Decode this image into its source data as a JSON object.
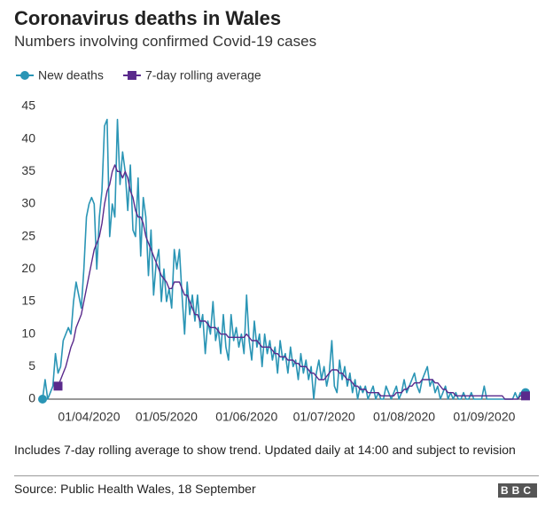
{
  "chart_data": {
    "type": "line",
    "title": "Coronavirus deaths in Wales",
    "subtitle": "Numbers involving confirmed Covid-19 cases",
    "note": "Includes 7-day rolling average to show trend. Updated daily at 14:00 and subject to revision",
    "source": "Source: Public Health Wales, 18 September",
    "brand": "BBC",
    "legend": "top-left",
    "grid": false,
    "x": [
      "2020-03-14",
      "2020-03-15",
      "2020-03-16",
      "2020-03-17",
      "2020-03-18",
      "2020-03-19",
      "2020-03-20",
      "2020-03-21",
      "2020-03-22",
      "2020-03-23",
      "2020-03-24",
      "2020-03-25",
      "2020-03-26",
      "2020-03-27",
      "2020-03-28",
      "2020-03-29",
      "2020-03-30",
      "2020-03-31",
      "2020-04-01",
      "2020-04-02",
      "2020-04-03",
      "2020-04-04",
      "2020-04-05",
      "2020-04-06",
      "2020-04-07",
      "2020-04-08",
      "2020-04-09",
      "2020-04-10",
      "2020-04-11",
      "2020-04-12",
      "2020-04-13",
      "2020-04-14",
      "2020-04-15",
      "2020-04-16",
      "2020-04-17",
      "2020-04-18",
      "2020-04-19",
      "2020-04-20",
      "2020-04-21",
      "2020-04-22",
      "2020-04-23",
      "2020-04-24",
      "2020-04-25",
      "2020-04-26",
      "2020-04-27",
      "2020-04-28",
      "2020-04-29",
      "2020-04-30",
      "2020-05-01",
      "2020-05-02",
      "2020-05-03",
      "2020-05-04",
      "2020-05-05",
      "2020-05-06",
      "2020-05-07",
      "2020-05-08",
      "2020-05-09",
      "2020-05-10",
      "2020-05-11",
      "2020-05-12",
      "2020-05-13",
      "2020-05-14",
      "2020-05-15",
      "2020-05-16",
      "2020-05-17",
      "2020-05-18",
      "2020-05-19",
      "2020-05-20",
      "2020-05-21",
      "2020-05-22",
      "2020-05-23",
      "2020-05-24",
      "2020-05-25",
      "2020-05-26",
      "2020-05-27",
      "2020-05-28",
      "2020-05-29",
      "2020-05-30",
      "2020-05-31",
      "2020-06-01",
      "2020-06-02",
      "2020-06-03",
      "2020-06-04",
      "2020-06-05",
      "2020-06-06",
      "2020-06-07",
      "2020-06-08",
      "2020-06-09",
      "2020-06-10",
      "2020-06-11",
      "2020-06-12",
      "2020-06-13",
      "2020-06-14",
      "2020-06-15",
      "2020-06-16",
      "2020-06-17",
      "2020-06-18",
      "2020-06-19",
      "2020-06-20",
      "2020-06-21",
      "2020-06-22",
      "2020-06-23",
      "2020-06-24",
      "2020-06-25",
      "2020-06-26",
      "2020-06-27",
      "2020-06-28",
      "2020-06-29",
      "2020-06-30",
      "2020-07-01",
      "2020-07-02",
      "2020-07-03",
      "2020-07-04",
      "2020-07-05",
      "2020-07-06",
      "2020-07-07",
      "2020-07-08",
      "2020-07-09",
      "2020-07-10",
      "2020-07-11",
      "2020-07-12",
      "2020-07-13",
      "2020-07-14",
      "2020-07-15",
      "2020-07-16",
      "2020-07-17",
      "2020-07-18",
      "2020-07-19",
      "2020-07-20",
      "2020-07-21",
      "2020-07-22",
      "2020-07-23",
      "2020-07-24",
      "2020-07-25",
      "2020-07-26",
      "2020-07-27",
      "2020-07-28",
      "2020-07-29",
      "2020-07-30",
      "2020-07-31",
      "2020-08-01",
      "2020-08-02",
      "2020-08-03",
      "2020-08-04",
      "2020-08-05",
      "2020-08-06",
      "2020-08-07",
      "2020-08-08",
      "2020-08-09",
      "2020-08-10",
      "2020-08-11",
      "2020-08-12",
      "2020-08-13",
      "2020-08-14",
      "2020-08-15",
      "2020-08-16",
      "2020-08-17",
      "2020-08-18",
      "2020-08-19",
      "2020-08-20",
      "2020-08-21",
      "2020-08-22",
      "2020-08-23",
      "2020-08-24",
      "2020-08-25",
      "2020-08-26",
      "2020-08-27",
      "2020-08-28",
      "2020-08-29",
      "2020-08-30",
      "2020-08-31",
      "2020-09-01",
      "2020-09-02",
      "2020-09-03",
      "2020-09-04",
      "2020-09-05",
      "2020-09-06",
      "2020-09-07",
      "2020-09-08",
      "2020-09-09",
      "2020-09-10",
      "2020-09-11",
      "2020-09-12",
      "2020-09-13",
      "2020-09-14",
      "2020-09-15",
      "2020-09-16",
      "2020-09-17"
    ],
    "series": [
      {
        "name": "New deaths",
        "color": "#2a95b5",
        "marker": "circle",
        "values": [
          0,
          3,
          0,
          1,
          2,
          7,
          4,
          5,
          9,
          10,
          11,
          10,
          15,
          18,
          16,
          14,
          20,
          28,
          30,
          31,
          30,
          20,
          28,
          32,
          42,
          43,
          25,
          30,
          28,
          43,
          33,
          38,
          35,
          29,
          36,
          26,
          25,
          34,
          22,
          31,
          28,
          19,
          26,
          16,
          21,
          23,
          15,
          20,
          15,
          17,
          14,
          23,
          20,
          23,
          16,
          10,
          18,
          13,
          16,
          12,
          16,
          11,
          13,
          7,
          12,
          10,
          15,
          9,
          11,
          7,
          13,
          8,
          6,
          13,
          9,
          11,
          8,
          10,
          7,
          16,
          9,
          6,
          12,
          8,
          10,
          5,
          10,
          7,
          9,
          6,
          8,
          4,
          9,
          6,
          7,
          4,
          8,
          5,
          6,
          3,
          7,
          4,
          6,
          3,
          5,
          0,
          4,
          6,
          3,
          5,
          2,
          4,
          9,
          2,
          1,
          6,
          3,
          5,
          2,
          4,
          1,
          3,
          0,
          2,
          1,
          2,
          0,
          1,
          2,
          0,
          1,
          0,
          0,
          2,
          1,
          0,
          1,
          2,
          0,
          1,
          3,
          1,
          2,
          3,
          4,
          2,
          1,
          3,
          4,
          5,
          2,
          3,
          1,
          2,
          0,
          1,
          2,
          0,
          1,
          0,
          1,
          0,
          0,
          1,
          0,
          0,
          1,
          0,
          0,
          0,
          0,
          2,
          0,
          0,
          0,
          0,
          0,
          0,
          0,
          0,
          0,
          0,
          0,
          1,
          0,
          1,
          0,
          1
        ]
      },
      {
        "name": "7-day rolling average",
        "color": "#5a2a8c",
        "marker": "square",
        "values": [
          null,
          null,
          null,
          null,
          null,
          null,
          2,
          3,
          4,
          5,
          6.5,
          8,
          9,
          11,
          12,
          13,
          15,
          17,
          19,
          21,
          23,
          24,
          25,
          27,
          30,
          32,
          33,
          35,
          36,
          35,
          35,
          34,
          35,
          34,
          32,
          31,
          29,
          28,
          28,
          27,
          25,
          24,
          23,
          22,
          21,
          20,
          19,
          18.5,
          18,
          17,
          17,
          18,
          18,
          18,
          17,
          16,
          16,
          15,
          14,
          13,
          13,
          12,
          12,
          12,
          11.5,
          11,
          11,
          11,
          10.5,
          10,
          10,
          10,
          9.5,
          9.5,
          9.5,
          9.5,
          9.5,
          9.5,
          9.5,
          10,
          9.5,
          9,
          9,
          9,
          8.5,
          8,
          8,
          8,
          8,
          7.5,
          7,
          7,
          6.5,
          6.5,
          6.5,
          6,
          6,
          6,
          5.5,
          5.5,
          5,
          5,
          5,
          4.5,
          4,
          4,
          3.5,
          3,
          3,
          3,
          3.5,
          4,
          4.5,
          4.5,
          4.5,
          4,
          4,
          3.5,
          3,
          3,
          2.5,
          2,
          2,
          1.5,
          1.5,
          1.5,
          1,
          1,
          1,
          1,
          1,
          0.5,
          0.5,
          0.5,
          0.5,
          0.5,
          0.5,
          1,
          1,
          1,
          1.5,
          1.5,
          2,
          2,
          2.5,
          2.5,
          2.5,
          3,
          3,
          3,
          3,
          3,
          2.5,
          2.5,
          2,
          1.5,
          1.5,
          1,
          1,
          1,
          0.5,
          0.5,
          0.5,
          0.5,
          0.5,
          0.5,
          0.5,
          0.5,
          0.5,
          0.5,
          0.5,
          0.5,
          0.5,
          0.5,
          0.5,
          0.5,
          0.5,
          0.5,
          0.5,
          0,
          0,
          0,
          0,
          0,
          0,
          0.5,
          0.5,
          0.5
        ]
      }
    ],
    "xlim": [
      "2020-03-14",
      "2020-09-17"
    ],
    "xticks": [
      {
        "value": "2020-04-01",
        "label": "01/04/2020"
      },
      {
        "value": "2020-05-01",
        "label": "01/05/2020"
      },
      {
        "value": "2020-06-01",
        "label": "01/06/2020"
      },
      {
        "value": "2020-07-01",
        "label": "01/07/2020"
      },
      {
        "value": "2020-08-01",
        "label": "01/08/2020"
      },
      {
        "value": "2020-09-01",
        "label": "01/09/2020"
      }
    ],
    "ylim": [
      0,
      45
    ],
    "yticks": [
      0,
      5,
      10,
      15,
      20,
      25,
      30,
      35,
      40,
      45
    ]
  }
}
